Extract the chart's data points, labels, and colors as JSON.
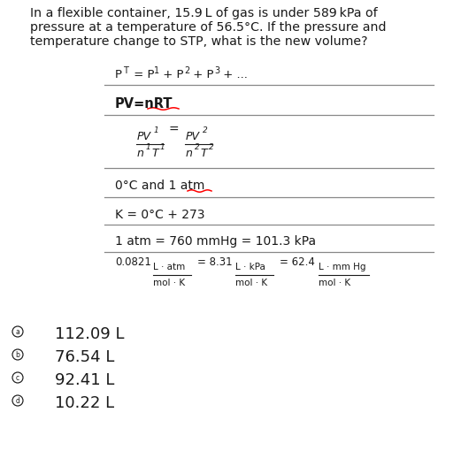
{
  "bg_color": "#ffffff",
  "text_color": "#1a1a1a",
  "line_color": "#888888",
  "red_color": "#ff0000",
  "question_line1": "In a flexible container, 15.9 L of gas is under 589 kPa of",
  "question_line2": "pressure at a temperature of 56.5°C. If the pressure and",
  "question_line3": "temperature change to STP, what is the new volume?",
  "choices": [
    "a",
    "b",
    "c",
    "d"
  ],
  "answers": [
    "112.09 L",
    "76.54 L",
    "92.41 L",
    "10.22 L"
  ]
}
